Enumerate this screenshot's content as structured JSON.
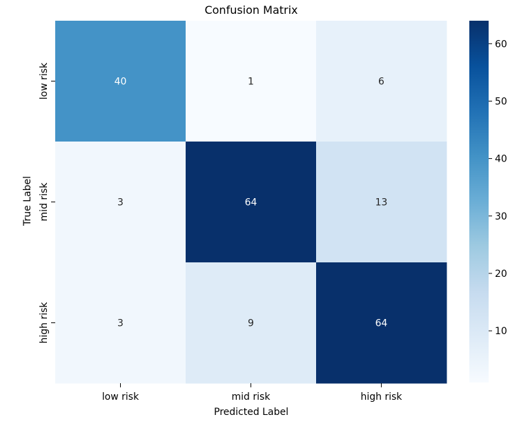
{
  "chart_data": {
    "type": "heatmap",
    "title": "Confusion Matrix",
    "xlabel": "Predicted Label",
    "ylabel": "True Label",
    "x_categories": [
      "low risk",
      "mid risk",
      "high risk"
    ],
    "y_categories": [
      "low risk",
      "mid risk",
      "high risk"
    ],
    "values": [
      [
        40,
        1,
        6
      ],
      [
        3,
        64,
        13
      ],
      [
        3,
        9,
        64
      ]
    ],
    "colormap": "Blues",
    "vmin": 1,
    "vmax": 64,
    "colorbar_ticks": [
      10,
      20,
      30,
      40,
      50,
      60
    ]
  }
}
